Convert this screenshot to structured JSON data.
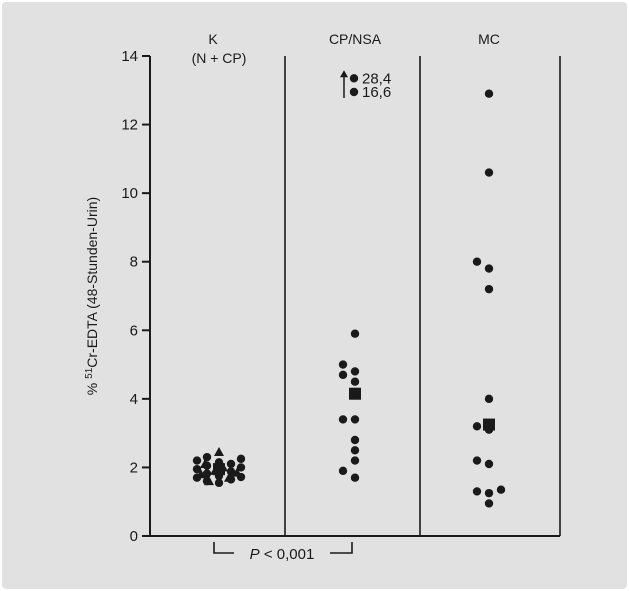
{
  "chart_data": {
    "type": "scatter",
    "ylabel": "% 51Cr-EDTA (48-Stunden-Urin)",
    "ylabel_parts": {
      "prefix": "% ",
      "superscript": "51",
      "rest": "Cr-EDTA (48-Stunden-Urin)"
    },
    "ylim": [
      0,
      14
    ],
    "yticks": [
      0,
      2,
      4,
      6,
      8,
      10,
      12,
      14
    ],
    "grid": false,
    "groups": [
      {
        "label_line1": "K",
        "label_line2": "(N + CP)",
        "points": [
          1.55,
          1.6,
          1.65,
          1.7,
          1.72,
          1.75,
          1.8,
          1.82,
          1.85,
          1.88,
          1.9,
          1.95,
          2.0,
          2.05,
          2.1,
          2.15,
          2.2,
          2.25,
          2.3
        ],
        "mean": 1.95,
        "triangles": [
          1.6,
          1.7,
          1.8,
          1.85,
          1.9,
          2.0,
          2.1,
          2.45
        ]
      },
      {
        "label_line1": "CP/NSA",
        "points": [
          1.7,
          1.9,
          2.2,
          2.5,
          2.8,
          3.4,
          3.4,
          4.2,
          4.5,
          4.7,
          4.8,
          5.0,
          5.9
        ],
        "mean": 4.15,
        "offscale": [
          {
            "label": "28,4",
            "plot_at": 13.35
          },
          {
            "label": "16,6",
            "plot_at": 12.95
          }
        ]
      },
      {
        "label_line1": "MC",
        "points": [
          0.95,
          1.25,
          1.3,
          1.35,
          2.1,
          2.2,
          3.1,
          3.2,
          4.0,
          7.2,
          7.8,
          8.0,
          10.6,
          12.9
        ],
        "mean": 3.25
      }
    ],
    "annotation": "P < 0,001",
    "annotation_parts": {
      "letter": "P",
      "rest": " < 0,001"
    }
  },
  "colors": {
    "background": "#e1e1e1",
    "ink": "#1a1a1a",
    "border": "#f4f4f4"
  }
}
